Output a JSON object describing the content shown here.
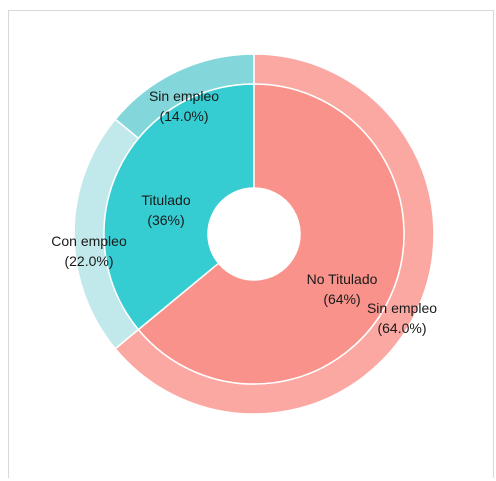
{
  "chart_data": {
    "type": "sunburst",
    "inner": [
      {
        "name": "Titulado",
        "value": 36,
        "label": "Titulado",
        "pct": "(36%)",
        "color": "#35CDD2"
      },
      {
        "name": "No Titulado",
        "value": 64,
        "label": "No Titulado",
        "pct": "(64%)",
        "color": "#F9928B"
      }
    ],
    "outer": [
      {
        "parent": "Titulado",
        "name": "Sin empleo",
        "value": 14.0,
        "label": "Sin empleo",
        "pct": "(14.0%)",
        "color": "#83D6DA"
      },
      {
        "parent": "Titulado",
        "name": "Con empleo",
        "value": 22.0,
        "label": "Con empleo",
        "pct": "(22.0%)",
        "color": "#C1E8EA"
      },
      {
        "parent": "No Titulado",
        "name": "Sin empleo",
        "value": 64.0,
        "label": "Sin empleo",
        "pct": "(64.0%)",
        "color": "#FBA8A2"
      }
    ]
  }
}
